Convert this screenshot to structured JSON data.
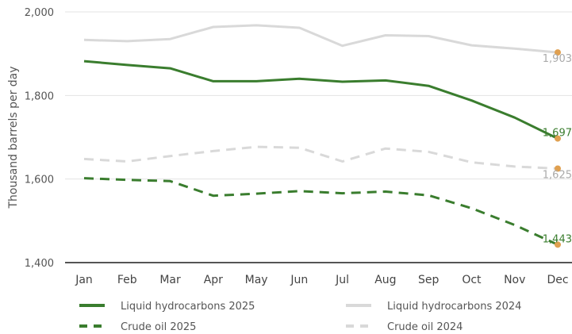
{
  "chart_data": {
    "type": "line",
    "title": "",
    "xlabel": "",
    "ylabel": "Thousand barrels per day",
    "categories": [
      "Jan",
      "Feb",
      "Mar",
      "Apr",
      "May",
      "Jun",
      "Jul",
      "Aug",
      "Sep",
      "Oct",
      "Nov",
      "Dec"
    ],
    "ylim": [
      1400,
      2000
    ],
    "yticks": [
      1400,
      1600,
      1800,
      2000
    ],
    "ytick_labels": [
      "1,400",
      "1,600",
      "1,800",
      "2,000"
    ],
    "grid": "horizontal",
    "legend_position": "bottom",
    "series": [
      {
        "name": "Liquid hydrocarbons 2025",
        "color": "#3a7d2e",
        "dash": "solid",
        "values": [
          1882,
          1873,
          1865,
          1834,
          1834,
          1840,
          1833,
          1836,
          1823,
          1788,
          1747,
          1697
        ],
        "end_label": "1,697",
        "end_label_color": "#3a7d2e"
      },
      {
        "name": "Crude oil 2025",
        "color": "#3a7d2e",
        "dash": "dashed",
        "values": [
          1602,
          1598,
          1595,
          1560,
          1565,
          1571,
          1566,
          1570,
          1561,
          1530,
          1490,
          1443
        ],
        "end_label": "1,443",
        "end_label_color": "#3a7d2e"
      },
      {
        "name": "Liquid hydrocarbons 2024",
        "color": "#d9d9d9",
        "dash": "solid",
        "values": [
          1933,
          1930,
          1935,
          1964,
          1968,
          1962,
          1919,
          1944,
          1942,
          1920,
          1912,
          1903
        ],
        "end_label": "1,903",
        "end_label_color": "#aaaaaa"
      },
      {
        "name": "Crude oil 2024",
        "color": "#d9d9d9",
        "dash": "dashed",
        "values": [
          1648,
          1642,
          1655,
          1667,
          1677,
          1675,
          1642,
          1673,
          1665,
          1640,
          1630,
          1625
        ],
        "end_label": "1,625",
        "end_label_color": "#aaaaaa"
      }
    ],
    "end_marker_color": "#e0a050"
  }
}
